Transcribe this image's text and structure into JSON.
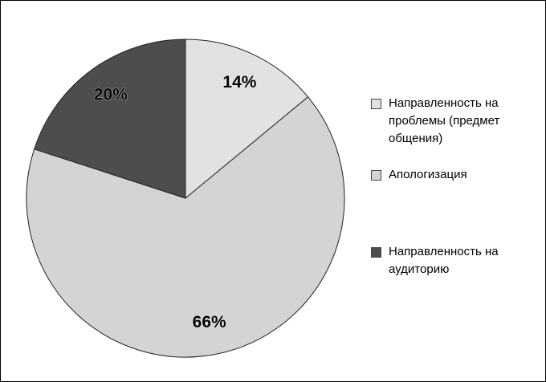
{
  "chart_data": {
    "type": "pie",
    "categories": [
      "Направленность на проблемы (предмет общения)",
      "Апологизация",
      "Направленность на аудиторию"
    ],
    "values": [
      14,
      66,
      20
    ],
    "value_labels": [
      "14%",
      "66%",
      "20%"
    ],
    "colors": [
      "#e2e2e2",
      "#d4d4d4",
      "#4d4d4d"
    ],
    "legend": "right"
  }
}
